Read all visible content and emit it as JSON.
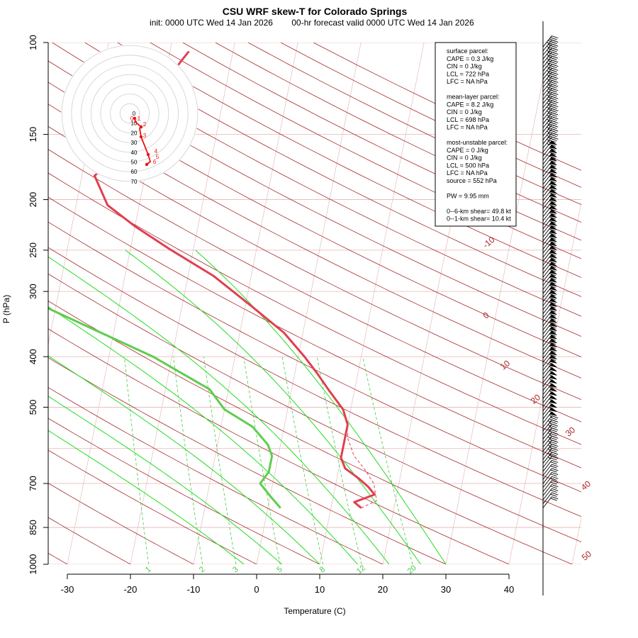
{
  "chart_data": {
    "type": "line",
    "title": "CSU WRF skew-T for Colorado Springs",
    "subtitle_left": "init: 0000 UTC Wed 14 Jan 2026",
    "subtitle_right": "00-hr forecast valid 0000 UTC Wed 14 Jan 2026",
    "xlabel": "Temperature (C)",
    "ylabel": "P (hPa)",
    "x_ticks": [
      "-30",
      "-20",
      "-10",
      "0",
      "10",
      "20",
      "30",
      "40"
    ],
    "pressure_ticks": [
      "100",
      "150",
      "200",
      "250",
      "300",
      "400",
      "500",
      "700",
      "850",
      "1000"
    ],
    "y_scale": "log (pressure)",
    "xlim": [
      -33,
      50
    ],
    "ylim_hpa": [
      1050,
      100
    ],
    "isotherm_labels": [
      "-10",
      "0",
      "10",
      "20",
      "30",
      "40",
      "50"
    ],
    "mixing_ratio_labels": [
      "1",
      "2",
      "3",
      "5",
      "8",
      "12",
      "20"
    ],
    "series": [
      {
        "name": "temperature",
        "color": "#e04050",
        "points": [
          [
            14.8,
            780
          ],
          [
            13.5,
            760
          ],
          [
            16.5,
            735
          ],
          [
            15.2,
            710
          ],
          [
            13.5,
            685
          ],
          [
            11,
            655
          ],
          [
            10,
            625
          ],
          [
            10,
            575
          ],
          [
            10,
            540
          ],
          [
            8.8,
            505
          ],
          [
            6,
            465
          ],
          [
            3.5,
            430
          ],
          [
            1,
            400
          ],
          [
            -3,
            360
          ],
          [
            -9,
            320
          ],
          [
            -16,
            280
          ],
          [
            -24,
            248
          ],
          [
            -30,
            225
          ],
          [
            -35,
            205
          ],
          [
            -38,
            180
          ],
          [
            -35,
            165
          ],
          [
            -30,
            150
          ],
          [
            -29,
            140
          ],
          [
            -29,
            125
          ],
          [
            -29,
            115
          ],
          [
            -28,
            109
          ],
          [
            -27,
            104
          ]
        ]
      },
      {
        "name": "dewpoint",
        "color": "#5fcc4f",
        "points": [
          [
            2,
            780
          ],
          [
            0,
            740
          ],
          [
            -2,
            700
          ],
          [
            -1,
            665
          ],
          [
            -1,
            620
          ],
          [
            -2,
            590
          ],
          [
            -5,
            545
          ],
          [
            -10,
            505
          ],
          [
            -13,
            462
          ],
          [
            -18,
            430
          ],
          [
            -23,
            400
          ],
          [
            -32,
            360
          ],
          [
            -42,
            320
          ],
          [
            -52,
            280
          ],
          [
            -60,
            248
          ],
          [
            -66,
            225
          ],
          [
            -71,
            205
          ],
          [
            -74,
            190
          ],
          [
            -74,
            180
          ]
        ]
      },
      {
        "name": "parcel",
        "color": "#e04050",
        "dashed": true,
        "points": [
          [
            14.8,
            780
          ],
          [
            17,
            755
          ],
          [
            16,
            700
          ],
          [
            14,
            655
          ],
          [
            12,
            620
          ],
          [
            10.5,
            575
          ],
          [
            10,
            545
          ]
        ]
      }
    ],
    "hodograph": {
      "ring_labels": [
        "0",
        "10",
        "20",
        "30",
        "40",
        "50",
        "60",
        "70"
      ],
      "point_labels": [
        "0",
        "1",
        "2",
        "3",
        "4",
        "5",
        "6"
      ],
      "color": "#ee1111"
    },
    "wind_barbs": "right-hand column, 100-780 hPa"
  },
  "stats": {
    "lines": [
      "surface parcel:",
      "CAPE = 0.3 J/kg",
      "CIN = 0 J/kg",
      "LCL = 722 hPa",
      "LFC = NA hPa",
      "",
      "mean-layer parcel:",
      "CAPE = 8.2 J/kg",
      "CIN = 0 J/kg",
      "LCL = 698 hPa",
      "LFC = NA hPa",
      "",
      "most-unstable parcel:",
      "CAPE = 0 J/kg",
      "CIN = 0 J/kg",
      "LCL = 500 hPa",
      "LFC = NA hPa",
      "source = 552 hPa",
      "",
      "PW =  9.95 mm",
      "",
      "0--6-km shear= 49.8 kt",
      "0--1-km shear= 10.4 kt"
    ]
  },
  "colors": {
    "dry_adiabat": "#a52a2a",
    "isobar": "#e8b4b4",
    "isotherm": "#e3bcbc",
    "moist_adiabat": "#22dd22",
    "mixing_ratio": "#44cc44",
    "temperature": "#e04050",
    "dewpoint": "#5fcc4f"
  }
}
